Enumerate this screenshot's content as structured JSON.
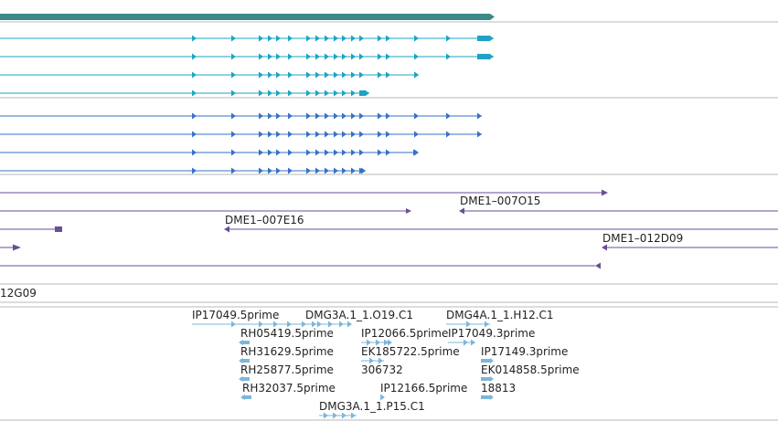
{
  "colors": {
    "gene": "#3b8a87",
    "transcript_a": "#1ea3c6",
    "transcript_b": "#3672c6",
    "clone": "#6a4e98",
    "est": "#7eb6d8",
    "separator": "#b8b8b8"
  },
  "clone_labels": {
    "c1": "DME1–007O15",
    "c2": "DME1–007E16",
    "c3": "DME1–012D09",
    "c4": "12G09"
  },
  "est_labels": {
    "l1": "IP17049.5prime",
    "l2": "DMG3A.1_1.O19.C1",
    "l3": "DMG4A.1_1.H12.C1",
    "l4": "RH05419.5prime",
    "l5": "IP12066.5prime",
    "l6": "IP17049.3prime",
    "l7": "RH31629.5prime",
    "l8": "EK185722.5prime",
    "l9": "IP17149.3prime",
    "l10": "RH25877.5prime",
    "l11": "306732",
    "l12": "EK014858.5prime",
    "l13": "RH32037.5prime",
    "l14": "IP12166.5prime",
    "l15": "18813",
    "l16": "DMG3A.1_1.P15.C1"
  },
  "icons": {
    "exon_marker": "right-triangle-arrow-icon",
    "clone_end": "left-arrow-icon"
  }
}
